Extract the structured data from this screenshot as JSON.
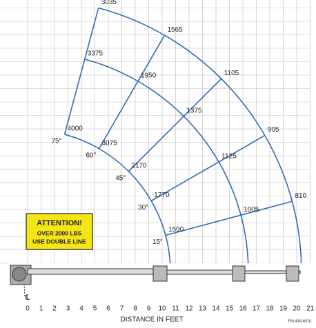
{
  "attention": {
    "title": "ATTENTION!",
    "line1": "OVER 2000 LBS",
    "line2": "USE DOUBLE LINE"
  },
  "angles": [
    {
      "label": "75°",
      "loads": [
        "4000",
        "3375",
        "3035"
      ]
    },
    {
      "label": "60°",
      "loads": [
        "3075",
        "1950",
        "1565"
      ]
    },
    {
      "label": "45°",
      "loads": [
        "2170",
        "1375",
        "1105"
      ]
    },
    {
      "label": "30°",
      "loads": [
        "1770",
        "1125",
        "905"
      ]
    },
    {
      "label": "15°",
      "loads": [
        "1590",
        "1005",
        "810"
      ]
    }
  ],
  "x_ticks": [
    "0",
    "1",
    "2",
    "3",
    "4",
    "5",
    "6",
    "7",
    "8",
    "9",
    "10",
    "11",
    "12",
    "13",
    "14",
    "15",
    "16",
    "17",
    "18",
    "19",
    "20",
    "21"
  ],
  "centerline": "℄",
  "x_label": "DISTANCE IN FEET",
  "part_number": "P/N 404240011"
}
